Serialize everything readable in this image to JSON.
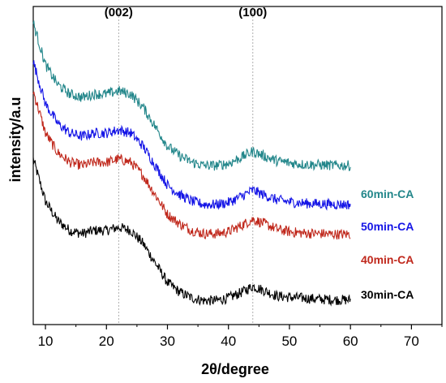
{
  "chart_data": {
    "type": "line",
    "xlabel": "2θ/degree",
    "ylabel": "intensity/a.u",
    "xlim": [
      8,
      75
    ],
    "xticks": [
      "10",
      "20",
      "30",
      "40",
      "50",
      "60",
      "70"
    ],
    "y_ticks_shown": false,
    "grid": false,
    "annotations": [
      {
        "text": "(002)",
        "x": 22
      },
      {
        "text": "(100)",
        "x": 44
      }
    ],
    "profile_x": [
      8,
      10,
      12,
      14,
      16,
      18,
      20,
      22,
      24,
      26,
      28,
      30,
      32,
      34,
      36,
      38,
      40,
      42,
      44,
      46,
      48,
      50,
      52,
      55,
      58,
      60
    ],
    "series": [
      {
        "name": "30min-CA",
        "color": "#000000",
        "values": [
          0.22,
          0.155,
          0.125,
          0.11,
          0.105,
          0.11,
          0.11,
          0.115,
          0.11,
          0.09,
          0.06,
          0.03,
          0.015,
          0.006,
          0.002,
          0.002,
          0.006,
          0.014,
          0.024,
          0.017,
          0.009,
          0.007,
          0.006,
          0.004,
          0.003,
          0.003
        ]
      },
      {
        "name": "40min-CA",
        "color": "#c0281c",
        "values": [
          0.325,
          0.26,
          0.23,
          0.215,
          0.21,
          0.215,
          0.215,
          0.22,
          0.215,
          0.195,
          0.165,
          0.135,
          0.12,
          0.11,
          0.105,
          0.105,
          0.108,
          0.117,
          0.127,
          0.12,
          0.112,
          0.108,
          0.106,
          0.105,
          0.104,
          0.104
        ]
      },
      {
        "name": "50min-CA",
        "color": "#1414e6",
        "values": [
          0.37,
          0.305,
          0.275,
          0.26,
          0.255,
          0.26,
          0.26,
          0.265,
          0.26,
          0.24,
          0.21,
          0.18,
          0.165,
          0.155,
          0.15,
          0.15,
          0.153,
          0.162,
          0.172,
          0.164,
          0.157,
          0.154,
          0.152,
          0.151,
          0.15,
          0.15
        ]
      },
      {
        "name": "60min-CA",
        "color": "#22868a",
        "values": [
          0.43,
          0.365,
          0.335,
          0.32,
          0.315,
          0.32,
          0.32,
          0.325,
          0.32,
          0.3,
          0.27,
          0.24,
          0.225,
          0.215,
          0.21,
          0.21,
          0.213,
          0.222,
          0.232,
          0.224,
          0.217,
          0.214,
          0.212,
          0.211,
          0.21,
          0.21
        ]
      }
    ]
  }
}
